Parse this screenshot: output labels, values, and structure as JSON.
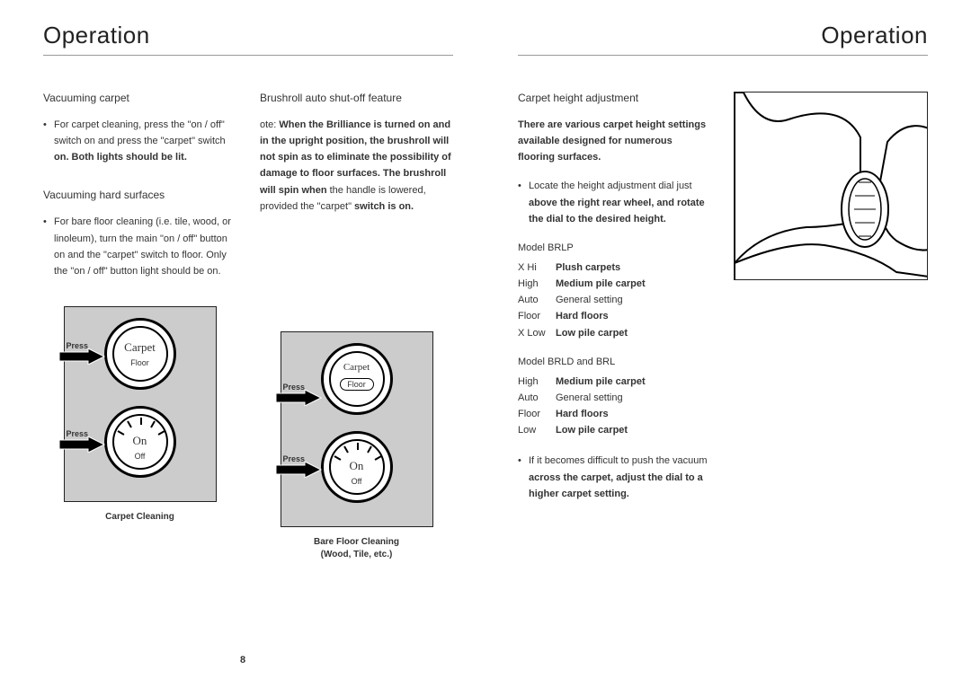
{
  "leftPage": {
    "title": "Operation",
    "pageNumber": "8",
    "col1": {
      "head1": "Vacuuming carpet",
      "para1_pre": "For carpet cleaning, press the \"on / off\" switch on and press the \"carpet\" switch ",
      "para1_bold": "on. Both lights should be lit.",
      "head2": "Vacuuming hard surfaces",
      "para2": "For bare floor cleaning (i.e. tile, wood, or linoleum), turn the main \"on / off\" button on and the \"carpet\" switch to floor. Only the \"on / off\" button light should be on."
    },
    "col2": {
      "head1": "Brushroll auto shut-off feature",
      "para_pre": "ote:   ",
      "para_bold1": "When the Brilliance is turned on and in the upright position, the brushroll will not spin as to eliminate the possibility of damage to floor surfaces. The brushroll will spin when",
      "para_mid": " the handle is lowered, provided the \"carpet\" ",
      "para_bold2": "switch is on."
    },
    "fig1": {
      "press1": "Press",
      "press2": "Press",
      "dial1_top": "Carpet",
      "dial1_bot": "Floor",
      "dial2_top": "On",
      "dial2_bot": "Off",
      "caption": "Carpet Cleaning"
    },
    "fig2": {
      "press1": "Press",
      "press2": "Press",
      "dial1_top": "Carpet",
      "dial1_bot": "Floor",
      "dial2_top": "On",
      "dial2_bot": "Off",
      "caption1": "Bare Floor Cleaning",
      "caption2": "(Wood, Tile, etc.)"
    }
  },
  "rightPage": {
    "title": "Operation",
    "head1": "Carpet height adjustment",
    "intro": "There are various carpet height settings available designed for numerous flooring surfaces.",
    "locate_pre": "Locate the height adjustment dial just ",
    "locate_bold": "above the right rear wheel, and rotate the dial to the desired height.",
    "model1": "Model BRLP",
    "brlp": [
      {
        "k": "X Hi",
        "v": "Plush carpets"
      },
      {
        "k": "High",
        "v": "Medium pile carpet"
      },
      {
        "k": "Auto",
        "v": "General setting"
      },
      {
        "k": "Floor",
        "v": "Hard floors"
      },
      {
        "k": "X Low",
        "v": "Low pile carpet"
      }
    ],
    "model2": "Model BRLD and BRL",
    "brld": [
      {
        "k": "High",
        "v": "Medium pile carpet"
      },
      {
        "k": "Auto",
        "v": "General setting"
      },
      {
        "k": "Floor",
        "v": "Hard floors"
      },
      {
        "k": "Low",
        "v": "Low pile carpet"
      }
    ],
    "tail_pre": "If it becomes difficult to push the vacuum ",
    "tail_bold": "across the carpet, adjust the dial to a higher carpet setting."
  }
}
